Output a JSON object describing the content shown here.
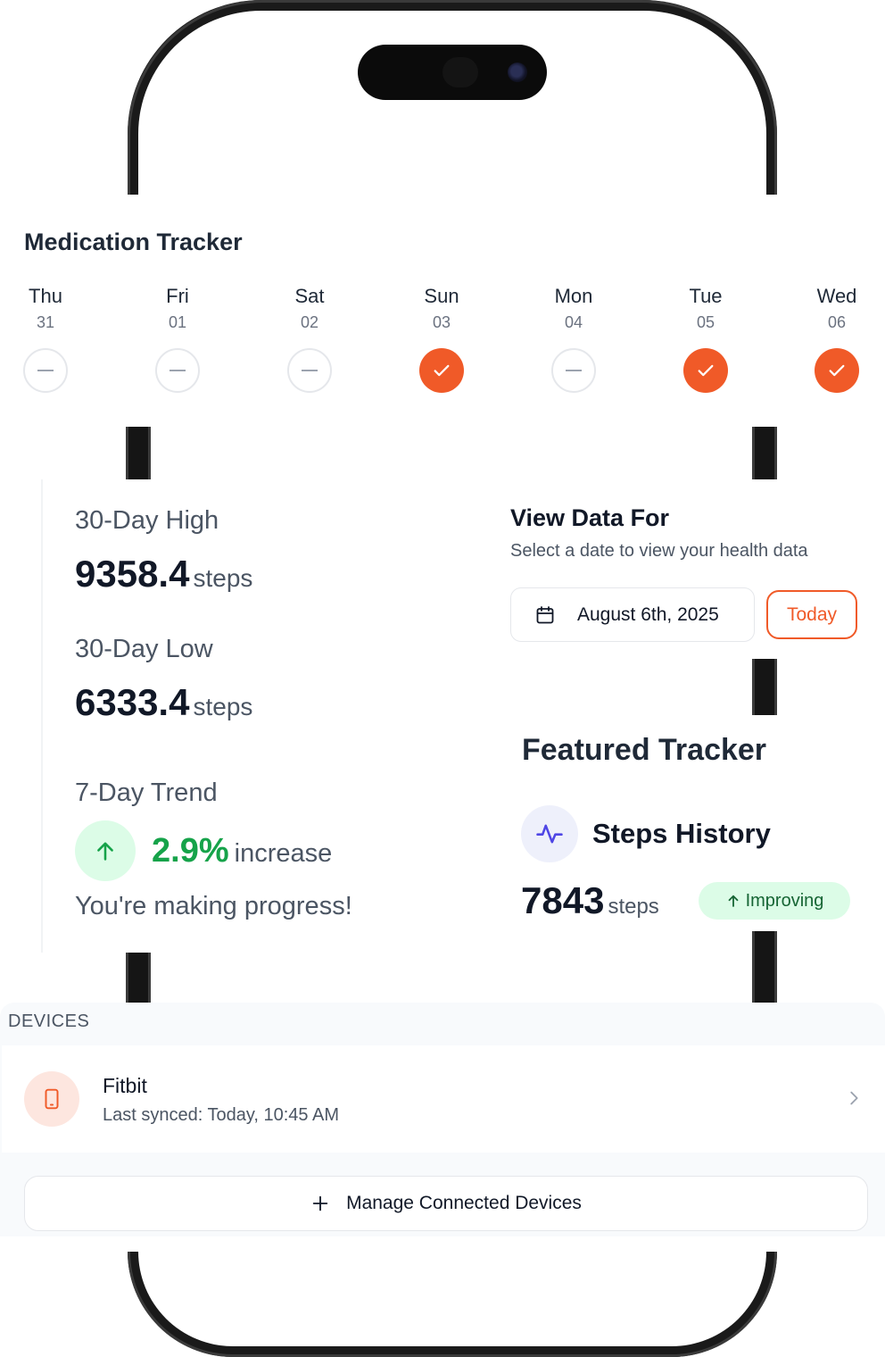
{
  "medication": {
    "title": "Medication Tracker",
    "days": [
      {
        "name": "Thu",
        "date": "31",
        "taken": false
      },
      {
        "name": "Fri",
        "date": "01",
        "taken": false
      },
      {
        "name": "Sat",
        "date": "02",
        "taken": false
      },
      {
        "name": "Sun",
        "date": "03",
        "taken": true
      },
      {
        "name": "Mon",
        "date": "04",
        "taken": false
      },
      {
        "name": "Tue",
        "date": "05",
        "taken": true
      },
      {
        "name": "Wed",
        "date": "06",
        "taken": true
      }
    ]
  },
  "stats": {
    "high_label": "30-Day High",
    "high_value": "9358.4",
    "low_label": "30-Day Low",
    "low_value": "6333.4",
    "unit": "steps",
    "trend_label": "7-Day Trend",
    "trend_percent": "2.9%",
    "trend_word": "increase",
    "trend_message": "You're making progress!"
  },
  "view_data": {
    "title": "View Data For",
    "subtitle": "Select a date to view your health data",
    "date": "August 6th, 2025",
    "today_label": "Today"
  },
  "featured": {
    "title": "Featured Tracker",
    "name": "Steps History",
    "value": "7843",
    "unit": "steps",
    "badge": "Improving"
  },
  "devices": {
    "header": "DEVICES",
    "items": [
      {
        "name": "Fitbit",
        "sync": "Last synced: Today, 10:45 AM"
      }
    ],
    "manage_label": "Manage Connected Devices"
  },
  "colors": {
    "accent": "#f05a28",
    "success": "#16a34a",
    "success_bg": "#dcfce7",
    "indigo": "#4f46e5"
  }
}
